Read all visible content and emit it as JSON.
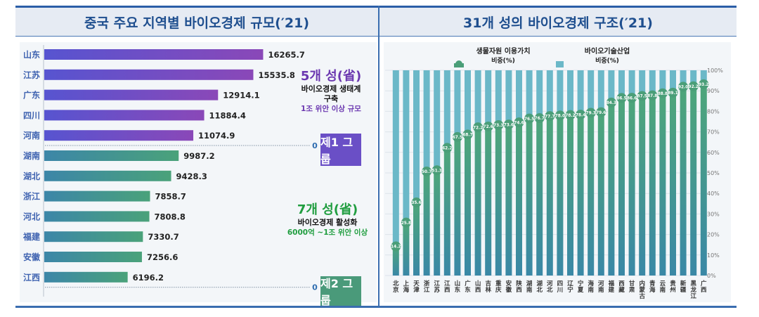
{
  "left_panel": {
    "title": "중국 주요 지역별 바이오경제 규모(′21)",
    "group1": {
      "count_label": "5개 성(省)",
      "desc_line1": "바이오경제 생태계",
      "desc_line2": "구축",
      "scale": "1조 위안 이상 규모",
      "badge": "제1 그룹",
      "color": "#6a4fc6"
    },
    "group2": {
      "count_label": "7개 성(省)",
      "desc_line1": "바이오경제 활성화",
      "scale": "6000억 ~1조 위안 이상",
      "badge": "제2 그룹",
      "color": "#4a9a7a"
    },
    "zero_marker": "0"
  },
  "right_panel": {
    "title": "31개 성의 바이오경제 구조(′21)"
  },
  "chart_data": [
    {
      "type": "bar",
      "orientation": "horizontal",
      "title": "중국 주요 지역별 바이오경제 규모(′21)",
      "categories": [
        "山东",
        "江苏",
        "广东",
        "四川",
        "河南",
        "湖南",
        "湖北",
        "浙江",
        "河北",
        "福建",
        "安徽",
        "江西"
      ],
      "values": [
        16265.7,
        15535.8,
        12914.1,
        11884.4,
        11074.9,
        9987.2,
        9428.3,
        7858.7,
        7808.8,
        7330.7,
        7256.6,
        6196.2
      ],
      "groups": [
        "제1 그룹",
        "제1 그룹",
        "제1 그룹",
        "제1 그룹",
        "제1 그룹",
        "제2 그룹",
        "제2 그룹",
        "제2 그룹",
        "제2 그룹",
        "제2 그룹",
        "제2 그룹",
        "제2 그룹"
      ],
      "xlabel": "",
      "ylabel": "",
      "xlim": [
        0,
        17000
      ],
      "grid": false
    },
    {
      "type": "bar",
      "orientation": "vertical",
      "stacked_percent": true,
      "title": "31개 성의 바이오경제 구조(′21)",
      "categories": [
        "北京",
        "上海",
        "天津",
        "浙江",
        "江苏",
        "江西",
        "山东",
        "广东",
        "山西",
        "吉林",
        "重庆",
        "安徽",
        "陕西",
        "湖南",
        "湖北",
        "河北",
        "四川",
        "辽宁",
        "宁夏",
        "海南",
        "河南",
        "福建",
        "西藏",
        "甘肃",
        "内蒙古",
        "青海",
        "云南",
        "贵州",
        "新疆",
        "黑龙江",
        "广西"
      ],
      "series": [
        {
          "name": "생물자원 이용가치 비중(%)",
          "color": "#4a9e78",
          "values": [
            14.2,
            25.8,
            35.6,
            50.7,
            51.3,
            62.2,
            67.5,
            68.7,
            72.2,
            72.6,
            73.3,
            73.6,
            74.6,
            76.5,
            76.7,
            77.7,
            78.0,
            78.2,
            78.4,
            79.3,
            79.6,
            84.3,
            86.5,
            86.6,
            87.5,
            87.8,
            88.8,
            89.1,
            92.0,
            92.2,
            93.2
          ]
        },
        {
          "name": "바이오기술산업 비중(%)",
          "color": "#6bb8c8",
          "values": [
            85.8,
            74.2,
            64.4,
            49.3,
            48.7,
            37.8,
            32.5,
            31.3,
            27.8,
            27.4,
            26.7,
            26.4,
            25.4,
            23.5,
            23.3,
            22.3,
            22.0,
            21.8,
            21.6,
            20.7,
            20.4,
            15.7,
            13.5,
            13.4,
            12.5,
            12.2,
            11.2,
            10.9,
            8.0,
            7.8,
            6.8
          ]
        }
      ],
      "yticks": [
        "0%",
        "10%",
        "20%",
        "30%",
        "40%",
        "50%",
        "60%",
        "70%",
        "80%",
        "90%",
        "100%"
      ],
      "ylim": [
        0,
        100
      ],
      "legend": "top",
      "grid": true
    }
  ]
}
